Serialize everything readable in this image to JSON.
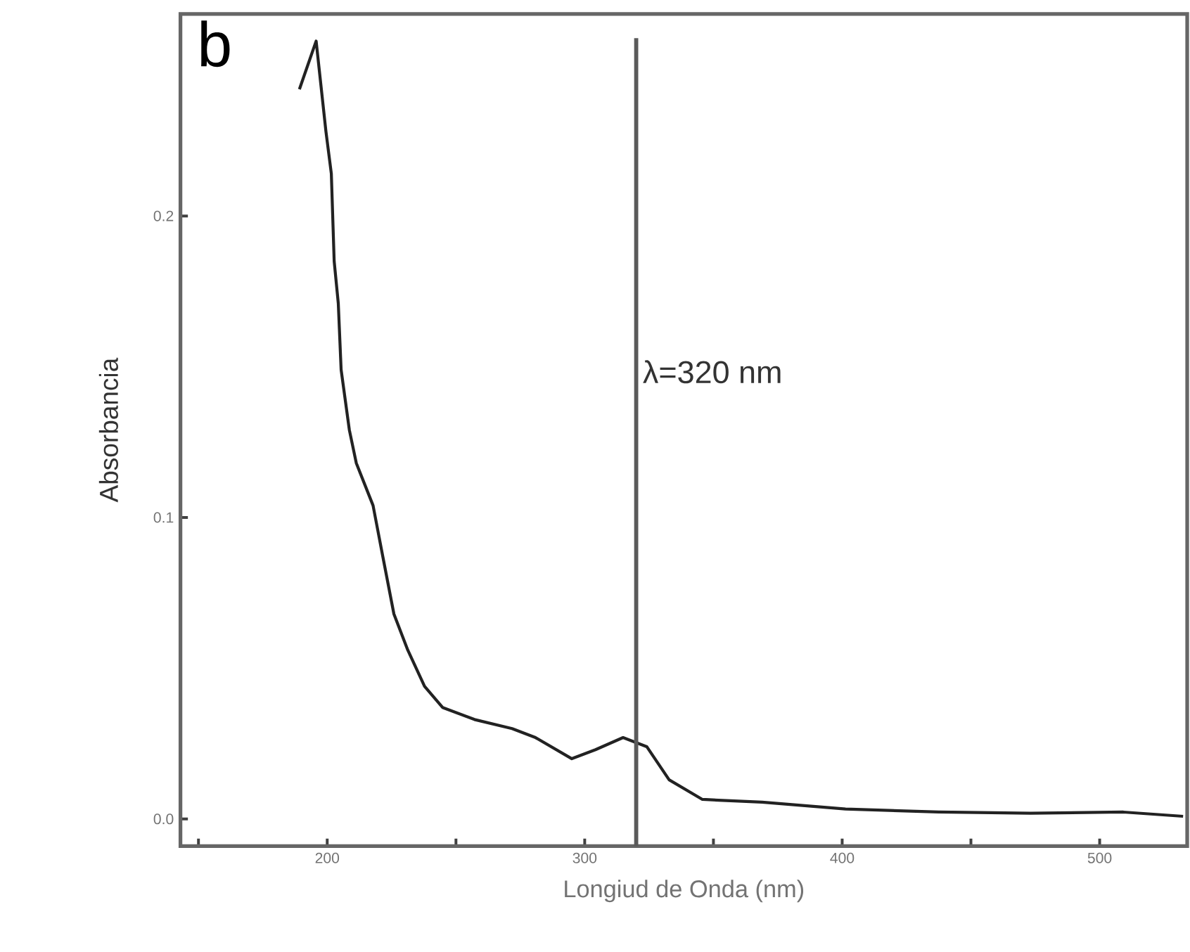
{
  "chart_data": {
    "type": "line",
    "xlabel": "Longiud de Onda (nm)",
    "ylabel": "Absorbancia",
    "annotations": [
      "b"
    ],
    "x": [
      189.2,
      195.7,
      199.5,
      201.6,
      202.7,
      204.3,
      205.4,
      208.6,
      211.3,
      217.8,
      221.6,
      225.9,
      231.3,
      237.8,
      244.8,
      257.2,
      271.8,
      280.9,
      295.0,
      304.2,
      314.9,
      324.1,
      332.8,
      345.7,
      368.9,
      401.3,
      437.5,
      473.1,
      509.2,
      532.4
    ],
    "series": [
      {
        "color": "#222222",
        "values": [
          0.242,
          0.258,
          0.228,
          0.214,
          0.185,
          0.171,
          0.149,
          0.129,
          0.118,
          0.104,
          0.087,
          0.068,
          0.056,
          0.044,
          0.037,
          0.033,
          0.03,
          0.027,
          0.02,
          0.023,
          0.027,
          0.024,
          0.013,
          0.0065,
          0.0056,
          0.0033,
          0.0023,
          0.0019,
          0.0023,
          0.0009
        ]
      }
    ],
    "xlim": [
      143,
      534
    ],
    "ylim": [
      -0.009,
      0.267
    ],
    "xticks": [
      {
        "value": 150,
        "label": null
      },
      200,
      {
        "value": 250,
        "label": null
      },
      300,
      {
        "value": 350,
        "label": null
      },
      400,
      {
        "value": 450,
        "label": null
      },
      500
    ],
    "yticks": [
      {
        "value": 0,
        "label": "0.0"
      },
      {
        "value": 0.1,
        "label": "0.1"
      },
      {
        "value": 0.2,
        "label": "0.2"
      }
    ],
    "ref_lines": [
      {
        "axis": "x",
        "value": 320,
        "label": "λ=320 nm",
        "color": "#5a5a5a"
      }
    ],
    "marker": "none",
    "line_style": "solid"
  }
}
